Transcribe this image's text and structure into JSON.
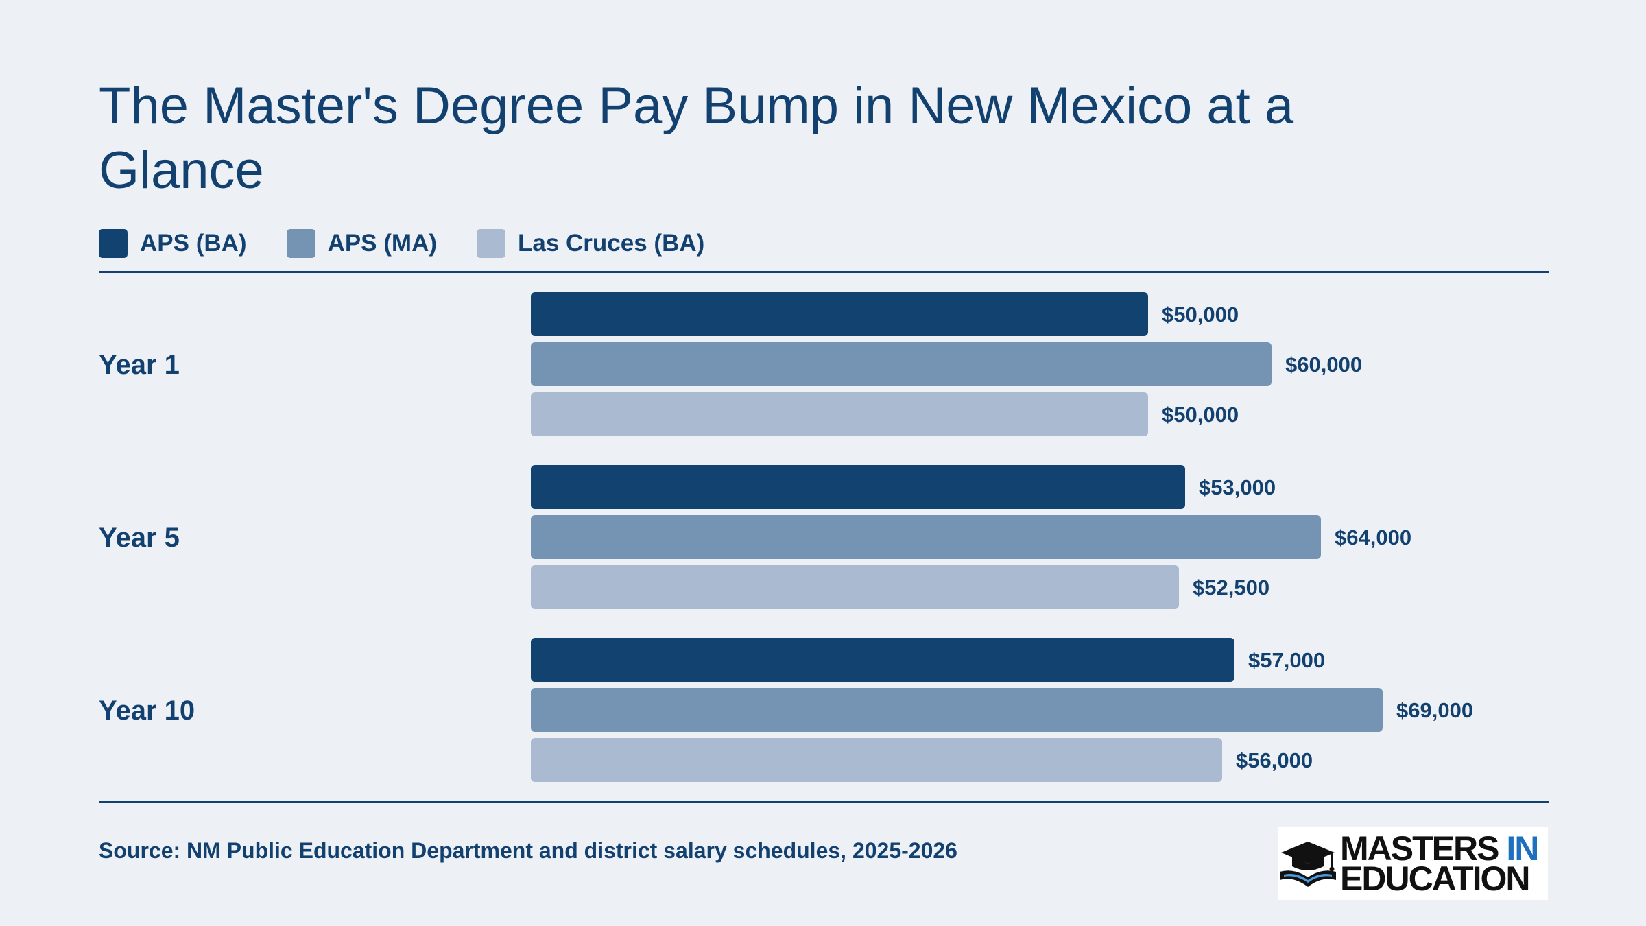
{
  "title": "The Master's Degree Pay Bump in New Mexico at a Glance",
  "source": "Source: NM Public Education Department and district salary schedules, 2025-2026",
  "logo": {
    "line1": "MASTERS",
    "line1_accent": "IN",
    "line2": "EDUCATION"
  },
  "colors": {
    "aps_ba": "#12426f",
    "aps_ma": "#7593b2",
    "lc_ba": "#aabbd1",
    "text": "#12406f",
    "background": "#edf0f5"
  },
  "chart_data": {
    "type": "bar",
    "orientation": "horizontal",
    "categories": [
      "Year 1",
      "Year 5",
      "Year 10"
    ],
    "series": [
      {
        "name": "APS (BA)",
        "color": "#12426f",
        "values": [
          50000,
          53000,
          57000
        ],
        "labels": [
          "$50,000",
          "$53,000",
          "$57,000"
        ]
      },
      {
        "name": "APS (MA)",
        "color": "#7593b2",
        "values": [
          60000,
          64000,
          69000
        ],
        "labels": [
          "$60,000",
          "$64,000",
          "$69,000"
        ]
      },
      {
        "name": "Las Cruces (BA)",
        "color": "#aabbd1",
        "values": [
          50000,
          52500,
          56000
        ],
        "labels": [
          "$50,000",
          "$52,500",
          "$56,000"
        ]
      }
    ],
    "xlim": [
      0,
      85000
    ],
    "legend": "top-left",
    "grid": false
  }
}
